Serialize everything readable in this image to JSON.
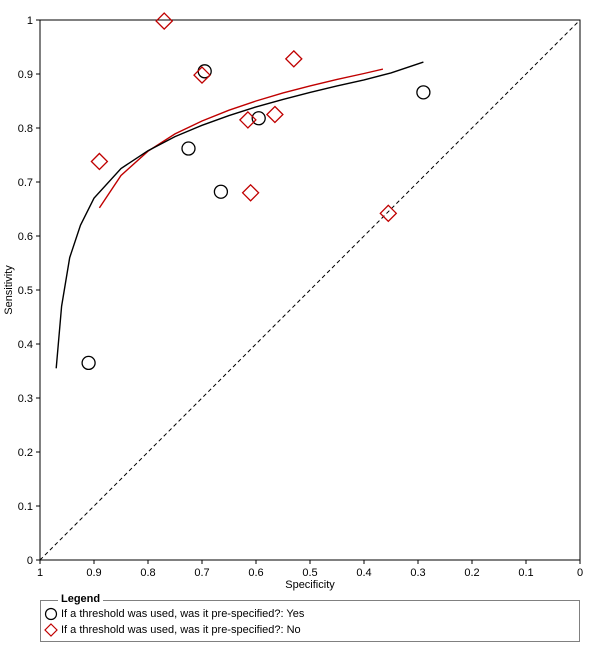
{
  "chart_data": {
    "type": "scatter",
    "xlabel": "Specificity",
    "ylabel": "Sensitivity",
    "xlim": [
      1,
      0
    ],
    "ylim": [
      0,
      1
    ],
    "x_reversed": true,
    "x_ticks": [
      "1",
      "0.9",
      "0.8",
      "0.7",
      "0.6",
      "0.5",
      "0.4",
      "0.3",
      "0.2",
      "0.1",
      "0"
    ],
    "y_ticks": [
      "0",
      "0.1",
      "0.2",
      "0.3",
      "0.4",
      "0.5",
      "0.6",
      "0.7",
      "0.8",
      "0.9",
      "1"
    ],
    "grid": false,
    "legend_position": "bottom",
    "series": [
      {
        "name": "If a threshold was used, was it pre-specified?: Yes",
        "marker": "circle",
        "color": "#000000",
        "points": [
          {
            "x": 0.91,
            "y": 0.365
          },
          {
            "x": 0.725,
            "y": 0.762
          },
          {
            "x": 0.695,
            "y": 0.905
          },
          {
            "x": 0.665,
            "y": 0.682
          },
          {
            "x": 0.595,
            "y": 0.818
          },
          {
            "x": 0.29,
            "y": 0.866
          }
        ],
        "curve": [
          {
            "x": 0.97,
            "y": 0.355
          },
          {
            "x": 0.96,
            "y": 0.47
          },
          {
            "x": 0.945,
            "y": 0.56
          },
          {
            "x": 0.925,
            "y": 0.62
          },
          {
            "x": 0.9,
            "y": 0.67
          },
          {
            "x": 0.85,
            "y": 0.725
          },
          {
            "x": 0.8,
            "y": 0.758
          },
          {
            "x": 0.75,
            "y": 0.784
          },
          {
            "x": 0.7,
            "y": 0.805
          },
          {
            "x": 0.65,
            "y": 0.823
          },
          {
            "x": 0.6,
            "y": 0.839
          },
          {
            "x": 0.55,
            "y": 0.853
          },
          {
            "x": 0.5,
            "y": 0.866
          },
          {
            "x": 0.45,
            "y": 0.878
          },
          {
            "x": 0.4,
            "y": 0.889
          },
          {
            "x": 0.35,
            "y": 0.902
          },
          {
            "x": 0.29,
            "y": 0.922
          }
        ]
      },
      {
        "name": "If a threshold was used, was it pre-specified?: No",
        "marker": "diamond",
        "color": "#c00000",
        "points": [
          {
            "x": 0.89,
            "y": 0.738
          },
          {
            "x": 0.77,
            "y": 0.998
          },
          {
            "x": 0.7,
            "y": 0.898
          },
          {
            "x": 0.615,
            "y": 0.815
          },
          {
            "x": 0.61,
            "y": 0.68
          },
          {
            "x": 0.565,
            "y": 0.825
          },
          {
            "x": 0.53,
            "y": 0.928
          },
          {
            "x": 0.355,
            "y": 0.642
          }
        ],
        "curve": [
          {
            "x": 0.89,
            "y": 0.652
          },
          {
            "x": 0.85,
            "y": 0.712
          },
          {
            "x": 0.8,
            "y": 0.757
          },
          {
            "x": 0.75,
            "y": 0.789
          },
          {
            "x": 0.7,
            "y": 0.813
          },
          {
            "x": 0.65,
            "y": 0.833
          },
          {
            "x": 0.6,
            "y": 0.85
          },
          {
            "x": 0.55,
            "y": 0.865
          },
          {
            "x": 0.5,
            "y": 0.878
          },
          {
            "x": 0.45,
            "y": 0.89
          },
          {
            "x": 0.4,
            "y": 0.901
          },
          {
            "x": 0.365,
            "y": 0.909
          }
        ]
      }
    ],
    "reference_line": {
      "from": [
        1,
        0
      ],
      "to": [
        0,
        1
      ],
      "style": "dashed"
    }
  },
  "legend": {
    "title": "Legend",
    "items": [
      {
        "label": "If a threshold was used, was it pre-specified?: Yes",
        "marker": "circle",
        "color": "#000000"
      },
      {
        "label": "If a threshold was used, was it pre-specified?: No",
        "marker": "diamond",
        "color": "#c00000"
      }
    ]
  }
}
